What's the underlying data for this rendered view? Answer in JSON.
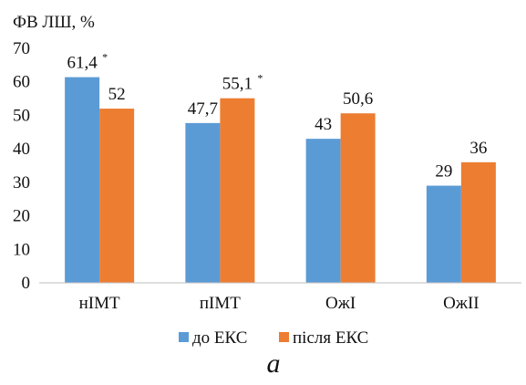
{
  "chart_data": {
    "type": "bar",
    "ylabel": "ФВ ЛШ, %",
    "categories": [
      "нІМТ",
      "пІМТ",
      "ОжІ",
      "ОжІІ"
    ],
    "series": [
      {
        "name": "до ЕКС",
        "color": "#5B9BD5",
        "values": [
          61.4,
          47.7,
          43,
          29
        ],
        "labels": [
          "61,4",
          "47,7",
          "43",
          "29"
        ],
        "marks": [
          "*",
          "",
          "",
          ""
        ]
      },
      {
        "name": "після ЕКС",
        "color": "#ED7D31",
        "values": [
          52,
          55.1,
          50.6,
          36
        ],
        "labels": [
          "52",
          "55,1",
          "50,6",
          "36"
        ],
        "marks": [
          "",
          "*",
          "",
          ""
        ]
      }
    ],
    "ylim": [
      0,
      70
    ],
    "yticks": [
      0,
      10,
      20,
      30,
      40,
      50,
      60,
      70
    ],
    "grid": false,
    "legend": "bottom"
  },
  "caption": "а"
}
